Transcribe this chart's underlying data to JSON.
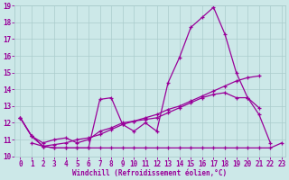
{
  "xlabel": "Windchill (Refroidissement éolien,°C)",
  "x": [
    0,
    1,
    2,
    3,
    4,
    5,
    6,
    7,
    8,
    9,
    10,
    11,
    12,
    13,
    14,
    15,
    16,
    17,
    18,
    19,
    20,
    21,
    22,
    23
  ],
  "line_spike": [
    12.3,
    11.2,
    10.6,
    10.5,
    10.5,
    10.5,
    10.5,
    13.4,
    13.5,
    11.9,
    11.5,
    12.0,
    11.5,
    14.4,
    15.9,
    17.7,
    18.3,
    18.9,
    17.3,
    15.0,
    13.5,
    12.9,
    null,
    null
  ],
  "line_smooth": [
    12.3,
    11.2,
    10.8,
    11.0,
    11.1,
    10.8,
    11.0,
    11.5,
    11.7,
    12.0,
    12.1,
    12.2,
    12.3,
    12.6,
    12.9,
    13.2,
    13.5,
    13.7,
    13.8,
    13.5,
    13.5,
    12.5,
    10.8,
    null
  ],
  "line_rise": [
    12.3,
    11.2,
    10.6,
    10.7,
    10.8,
    11.0,
    11.1,
    11.3,
    11.6,
    11.9,
    12.1,
    12.3,
    12.5,
    12.8,
    13.0,
    13.3,
    13.6,
    13.9,
    14.2,
    14.5,
    14.7,
    14.8,
    null,
    null
  ],
  "line_flat": [
    null,
    10.8,
    10.6,
    10.5,
    10.5,
    10.5,
    10.5,
    10.5,
    10.5,
    10.5,
    10.5,
    10.5,
    10.5,
    10.5,
    10.5,
    10.5,
    10.5,
    10.5,
    10.5,
    10.5,
    10.5,
    10.5,
    10.5,
    10.8
  ],
  "color": "#990099",
  "bg_color": "#cce8e8",
  "grid_color": "#aacccc",
  "ylim": [
    10,
    19
  ],
  "xlim": [
    0,
    23
  ],
  "yticks": [
    10,
    11,
    12,
    13,
    14,
    15,
    16,
    17,
    18,
    19
  ],
  "xticks": [
    0,
    1,
    2,
    3,
    4,
    5,
    6,
    7,
    8,
    9,
    10,
    11,
    12,
    13,
    14,
    15,
    16,
    17,
    18,
    19,
    20,
    21,
    22,
    23
  ],
  "tick_fontsize": 5.5,
  "xlabel_fontsize": 5.5
}
